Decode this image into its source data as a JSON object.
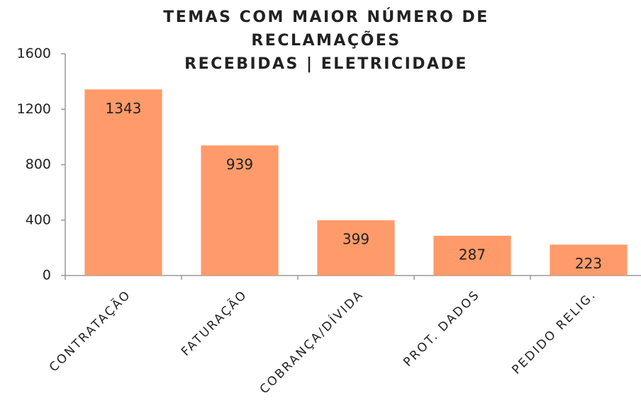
{
  "chart_data": {
    "type": "bar",
    "title": [
      "TEMAS COM MAIOR NÚMERO DE",
      "RECLAMAÇÕES",
      "RECEBIDAS | ELETRICIDADE"
    ],
    "categories": [
      "CONTRATAÇÃO",
      "FATURAÇÃO",
      "COBRANÇA/DÍVIDA",
      "PROT. DADOS",
      "PEDIDO RELIG."
    ],
    "values": [
      1343,
      939,
      399,
      287,
      223
    ],
    "color": "#ff9b6a",
    "ylim": [
      0,
      1600
    ],
    "yticks": [
      0,
      400,
      800,
      1200,
      1600
    ],
    "grid": false
  }
}
